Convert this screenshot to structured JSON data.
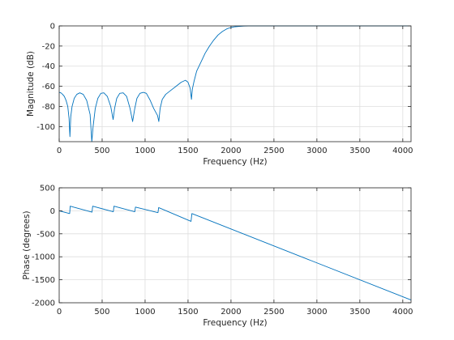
{
  "chart_data": [
    {
      "type": "line",
      "xlabel": "Frequency (Hz)",
      "ylabel": "Magnitude (dB)",
      "xlim": [
        0,
        4096
      ],
      "ylim": [
        -115,
        0
      ],
      "xticks": [
        0,
        500,
        1000,
        1500,
        2000,
        2500,
        3000,
        3500,
        4000
      ],
      "yticks": [
        -100,
        -80,
        -60,
        -40,
        -20,
        0
      ],
      "grid": true,
      "series": [
        {
          "color": "#0072bd",
          "points": [
            [
              0,
              -66
            ],
            [
              20,
              -66.5
            ],
            [
              40,
              -68
            ],
            [
              60,
              -70
            ],
            [
              80,
              -74
            ],
            [
              100,
              -80
            ],
            [
              115,
              -92
            ],
            [
              125,
              -110
            ],
            [
              135,
              -90
            ],
            [
              150,
              -80
            ],
            [
              175,
              -72
            ],
            [
              205,
              -68
            ],
            [
              240,
              -66.5
            ],
            [
              280,
              -68
            ],
            [
              320,
              -74
            ],
            [
              360,
              -88
            ],
            [
              380,
              -115
            ],
            [
              395,
              -100
            ],
            [
              420,
              -82
            ],
            [
              450,
              -72
            ],
            [
              485,
              -67
            ],
            [
              520,
              -66.5
            ],
            [
              560,
              -70
            ],
            [
              600,
              -80
            ],
            [
              628,
              -93
            ],
            [
              645,
              -82
            ],
            [
              670,
              -72
            ],
            [
              705,
              -67
            ],
            [
              745,
              -66.5
            ],
            [
              785,
              -70
            ],
            [
              825,
              -82
            ],
            [
              855,
              -95
            ],
            [
              880,
              -82
            ],
            [
              905,
              -72
            ],
            [
              940,
              -67
            ],
            [
              980,
              -66
            ],
            [
              1015,
              -67
            ],
            [
              1060,
              -74
            ],
            [
              1100,
              -82
            ],
            [
              1145,
              -89
            ],
            [
              1160,
              -95
            ],
            [
              1175,
              -82
            ],
            [
              1200,
              -73
            ],
            [
              1240,
              -68
            ],
            [
              1300,
              -64
            ],
            [
              1360,
              -60
            ],
            [
              1420,
              -56
            ],
            [
              1470,
              -54
            ],
            [
              1500,
              -56
            ],
            [
              1525,
              -62
            ],
            [
              1540,
              -73
            ],
            [
              1550,
              -63
            ],
            [
              1570,
              -55
            ],
            [
              1600,
              -45
            ],
            [
              1650,
              -36
            ],
            [
              1700,
              -27
            ],
            [
              1750,
              -20
            ],
            [
              1800,
              -14
            ],
            [
              1850,
              -9
            ],
            [
              1900,
              -5.5
            ],
            [
              1950,
              -3
            ],
            [
              2000,
              -1.5
            ],
            [
              2050,
              -0.8
            ],
            [
              2100,
              -0.4
            ],
            [
              2150,
              -0.1
            ],
            [
              2200,
              0
            ],
            [
              2500,
              0
            ],
            [
              3000,
              0
            ],
            [
              3500,
              0
            ],
            [
              4096,
              0
            ]
          ]
        }
      ]
    },
    {
      "type": "line",
      "xlabel": "Frequency (Hz)",
      "ylabel": "Phase (degrees)",
      "xlim": [
        0,
        4096
      ],
      "ylim": [
        -2000,
        500
      ],
      "xticks": [
        0,
        500,
        1000,
        1500,
        2000,
        2500,
        3000,
        3500,
        4000
      ],
      "yticks": [
        -2000,
        -1500,
        -1000,
        -500,
        0,
        500
      ],
      "grid": true,
      "series": [
        {
          "color": "#0072bd",
          "points": [
            [
              0,
              0
            ],
            [
              122,
              -60
            ],
            [
              128,
              100
            ],
            [
              382,
              -30
            ],
            [
              390,
              100
            ],
            [
              630,
              -20
            ],
            [
              638,
              100
            ],
            [
              880,
              -20
            ],
            [
              888,
              80
            ],
            [
              1150,
              -40
            ],
            [
              1158,
              70
            ],
            [
              1535,
              -230
            ],
            [
              1545,
              -60
            ],
            [
              4096,
              -1940
            ]
          ]
        }
      ]
    }
  ]
}
